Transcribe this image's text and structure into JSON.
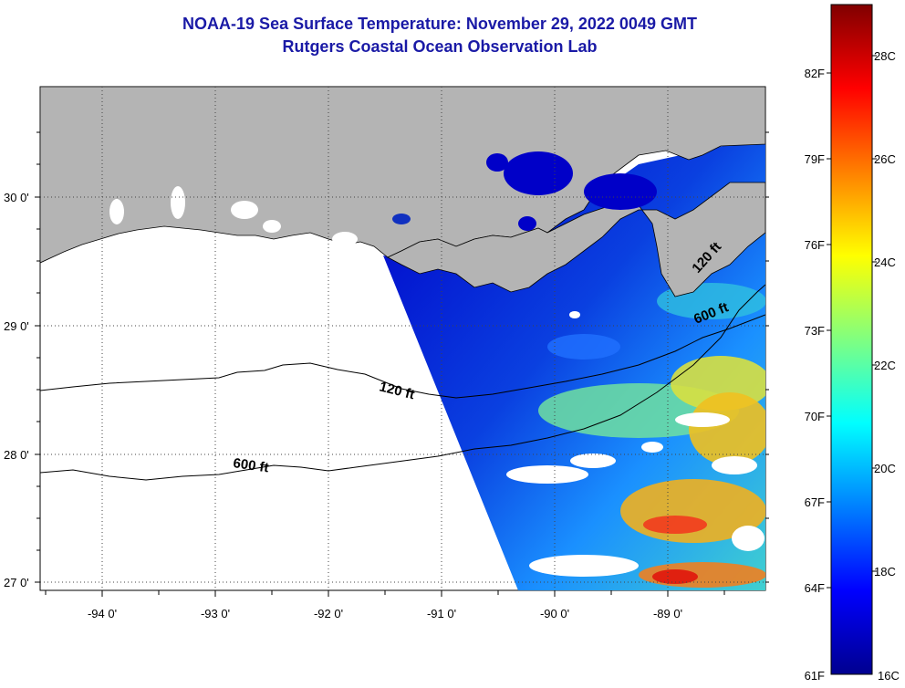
{
  "title": "NOAA-19 Sea Surface Temperature:  November 29, 2022 0049 GMT",
  "subtitle": "Rutgers Coastal Ocean Observation Lab",
  "map": {
    "latitude_labels": [
      "30 0'",
      "29 0'",
      "28 0'",
      "27 0'"
    ],
    "longitude_labels": [
      "-94 0'",
      "-93 0'",
      "-92 0'",
      "-91 0'",
      "-90 0'",
      "-89 0'"
    ],
    "lat_range": [
      26.95,
      30.85
    ],
    "lon_range": [
      -94.55,
      -88.2
    ],
    "isobath_labels": {
      "shelf_120": "120 ft",
      "shelf_600": "600 ft",
      "east_600": "600 ft",
      "east_120": "120 ft"
    },
    "land_color": "#b4b4b4",
    "no_data_color": "#ffffff",
    "cloud_color": "#ffffff"
  },
  "colorbar": {
    "fahrenheit_labels": [
      "82F",
      "79F",
      "76F",
      "73F",
      "70F",
      "67F",
      "64F",
      "61F"
    ],
    "celsius_labels": [
      "28C",
      "26C",
      "24C",
      "22C",
      "20C",
      "18C",
      "16C"
    ],
    "range_c": [
      16,
      29.4
    ],
    "colormap": [
      "#00008f",
      "#0000ff",
      "#0080ff",
      "#00ffff",
      "#80ff80",
      "#ffff00",
      "#ff8000",
      "#ff0000",
      "#800000"
    ]
  }
}
